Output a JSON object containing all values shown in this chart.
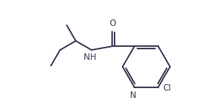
{
  "bg_color": "#ffffff",
  "line_color": "#3a3a52",
  "text_color": "#3a3a52",
  "figsize": [
    2.56,
    1.36
  ],
  "dpi": 100,
  "lw": 1.3,
  "fs": 7.5,
  "xlim": [
    0,
    10.0
  ],
  "ylim": [
    0.5,
    5.8
  ]
}
